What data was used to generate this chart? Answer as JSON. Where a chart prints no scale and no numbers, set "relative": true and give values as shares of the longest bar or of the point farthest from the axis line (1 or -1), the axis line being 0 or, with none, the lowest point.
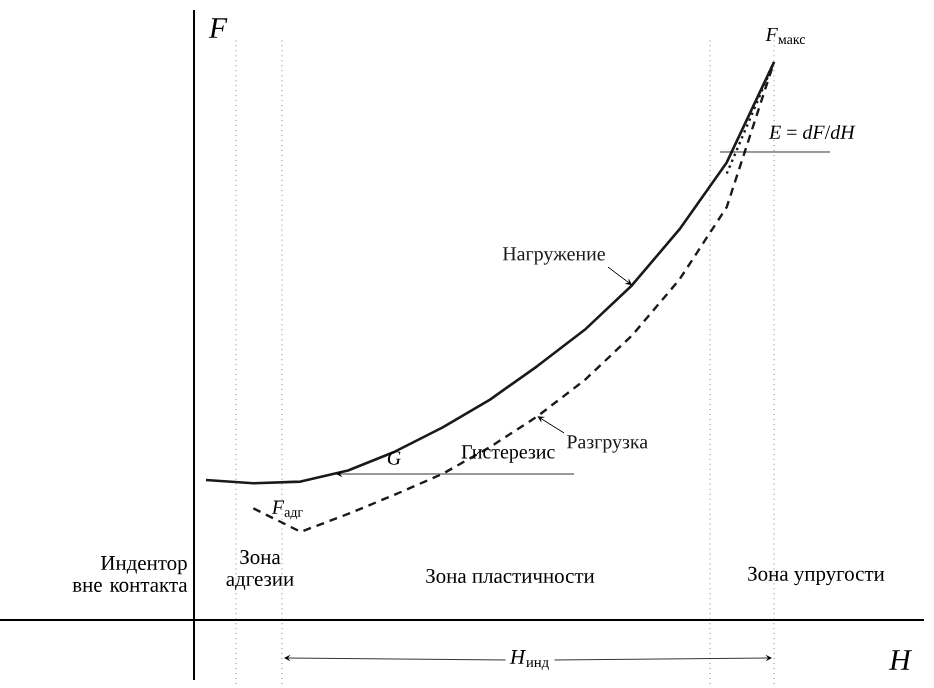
{
  "chart_data": {
    "type": "line",
    "relative": true,
    "xlabel": "H",
    "ylabel": "F",
    "categories": [
      null,
      null,
      null,
      null,
      null,
      null,
      null,
      null,
      null,
      null,
      null,
      null,
      null
    ],
    "series": [
      {
        "name": "Нагружение",
        "color": "#1a1a1a",
        "line_style": "solid",
        "values": [
          0.251,
          0.245,
          0.248,
          0.268,
          0.302,
          0.345,
          0.395,
          0.455,
          0.52,
          0.6,
          0.7,
          0.82,
          1.0
        ]
      },
      {
        "name": "Разгрузка",
        "color": "#1a1a1a",
        "line_style": "dashed",
        "values": [
          null,
          0.2,
          0.158,
          0.19,
          0.225,
          0.262,
          0.31,
          0.365,
          0.43,
          0.51,
          0.61,
          0.74,
          1.0
        ]
      },
      {
        "color": "#1a1a1a",
        "line_style": "dotted",
        "values": [
          null,
          null,
          null,
          null,
          null,
          null,
          null,
          null,
          null,
          null,
          null,
          0.8,
          1.0
        ]
      }
    ],
    "annotations": [
      "*F*$_{макс}$",
      "*E* = *dF*/*dH*",
      "*G*",
      "Гистерезис",
      "*F*$_{адг}$",
      "Индентор вне контакта",
      "Зона адгезии",
      "Зона пластичности",
      "Зона упругости",
      "*H*$_{инд}$"
    ]
  }
}
